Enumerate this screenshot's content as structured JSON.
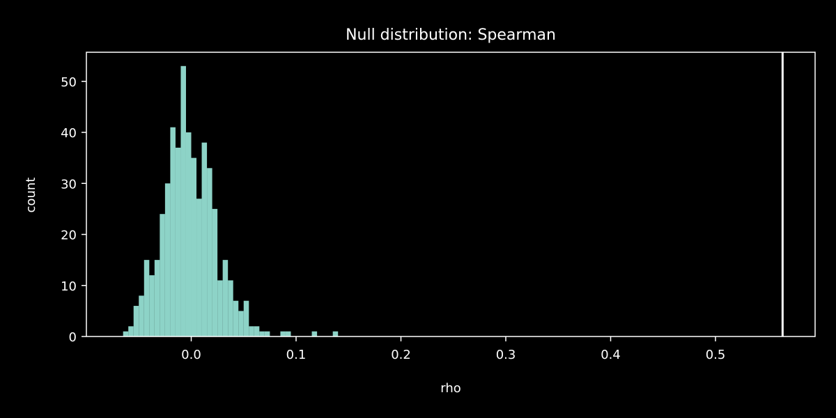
{
  "chart_data": {
    "type": "bar",
    "title": "Null distribution: Spearman",
    "xlabel": "rho",
    "ylabel": "count",
    "xlim": [
      -0.1,
      0.595
    ],
    "ylim": [
      0,
      55.7
    ],
    "x_ticks": [
      0.0,
      0.1,
      0.2,
      0.3,
      0.4,
      0.5
    ],
    "x_tick_labels": [
      "0.0",
      "0.1",
      "0.2",
      "0.3",
      "0.4",
      "0.5"
    ],
    "y_ticks": [
      0,
      10,
      20,
      30,
      40,
      50
    ],
    "y_tick_labels": [
      "0",
      "10",
      "20",
      "30",
      "40",
      "50"
    ],
    "bin_width": 0.005,
    "bin_left_edges": [
      -0.065,
      -0.06,
      -0.055,
      -0.05,
      -0.045,
      -0.04,
      -0.035,
      -0.03,
      -0.025,
      -0.02,
      -0.015,
      -0.01,
      -0.005,
      0.0,
      0.005,
      0.01,
      0.015,
      0.02,
      0.025,
      0.03,
      0.035,
      0.04,
      0.045,
      0.05,
      0.055,
      0.06,
      0.065,
      0.07,
      0.075,
      0.08,
      0.085,
      0.09,
      0.095,
      0.1,
      0.105,
      0.11,
      0.115,
      0.12,
      0.125,
      0.13,
      0.135
    ],
    "values": [
      1,
      2,
      6,
      8,
      15,
      12,
      15,
      24,
      30,
      41,
      37,
      53,
      40,
      35,
      27,
      38,
      33,
      25,
      11,
      15,
      11,
      7,
      5,
      7,
      2,
      2,
      1,
      1,
      0,
      0,
      1,
      1,
      0,
      0,
      0,
      0,
      1,
      0,
      0,
      0,
      1
    ],
    "observed_line": {
      "x": 0.564
    },
    "grid": false,
    "colors": {
      "bars": "#8dd3c7",
      "background": "#000000",
      "axes": "#ffffff",
      "observed_line": "#ffffff"
    }
  }
}
